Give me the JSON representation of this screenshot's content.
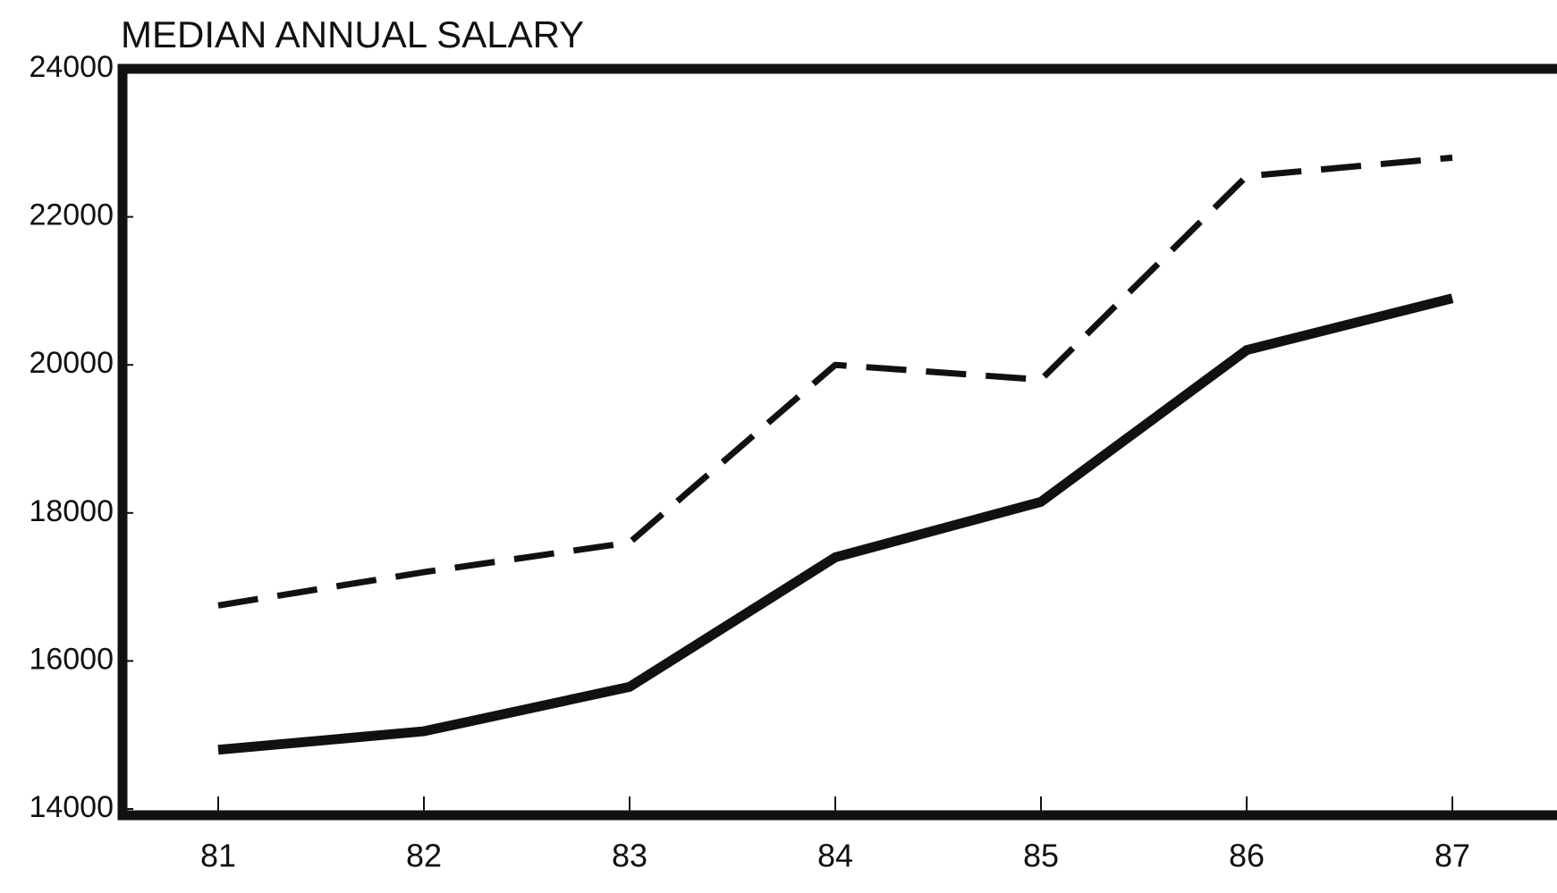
{
  "chart_data": {
    "type": "line",
    "title": "MEDIAN ANNUAL SALARY",
    "categories": [
      "81",
      "82",
      "83",
      "84",
      "85",
      "86",
      "87"
    ],
    "series": [
      {
        "color": "#111111",
        "line_style": "solid",
        "values": [
          14800,
          15050,
          15650,
          17400,
          18150,
          20200,
          20900
        ]
      },
      {
        "color": "#111111",
        "line_style": "dashed",
        "values": [
          16750,
          17200,
          17600,
          20000,
          19800,
          22550,
          22800
        ]
      }
    ],
    "ylim": [
      14000,
      24000
    ],
    "yticks": [
      14000,
      16000,
      18000,
      20000,
      22000,
      24000
    ],
    "grid": false
  }
}
